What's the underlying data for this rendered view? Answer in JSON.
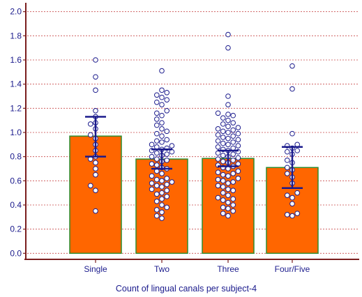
{
  "chart_data": {
    "type": "bar",
    "categories": [
      "Single",
      "Two",
      "Three",
      "Four/Five"
    ],
    "values": [
      0.97,
      0.78,
      0.785,
      0.71
    ],
    "error_bars": [
      {
        "low": 0.8,
        "high": 1.13
      },
      {
        "low": 0.7,
        "high": 0.86
      },
      {
        "low": 0.72,
        "high": 0.85
      },
      {
        "low": 0.54,
        "high": 0.88
      }
    ],
    "points": [
      [
        1.6,
        1.46,
        1.35,
        1.18,
        1.13,
        1.08,
        1.07,
        1.03,
        0.98,
        0.95,
        0.9,
        0.85,
        0.8,
        0.78,
        0.75,
        0.7,
        0.65,
        0.56,
        0.52,
        0.35
      ],
      [
        1.51,
        1.35,
        1.33,
        1.31,
        1.29,
        1.27,
        1.25,
        1.23,
        1.18,
        1.16,
        1.14,
        1.11,
        1.08,
        1.06,
        1.03,
        1.01,
        0.99,
        0.97,
        0.94,
        0.93,
        0.92,
        0.9,
        0.89,
        0.88,
        0.87,
        0.86,
        0.85,
        0.84,
        0.83,
        0.82,
        0.81,
        0.8,
        0.78,
        0.77,
        0.76,
        0.74,
        0.73,
        0.71,
        0.7,
        0.68,
        0.66,
        0.64,
        0.62,
        0.61,
        0.6,
        0.59,
        0.58,
        0.57,
        0.56,
        0.55,
        0.53,
        0.52,
        0.5,
        0.49,
        0.47,
        0.45,
        0.43,
        0.4,
        0.38,
        0.36,
        0.34,
        0.31,
        0.29
      ],
      [
        1.81,
        1.7,
        1.3,
        1.23,
        1.16,
        1.15,
        1.14,
        1.12,
        1.1,
        1.08,
        1.07,
        1.05,
        1.04,
        1.03,
        1.02,
        1.01,
        1.0,
        0.99,
        0.98,
        0.97,
        0.96,
        0.95,
        0.94,
        0.93,
        0.92,
        0.91,
        0.9,
        0.89,
        0.88,
        0.87,
        0.86,
        0.85,
        0.84,
        0.83,
        0.82,
        0.81,
        0.8,
        0.79,
        0.78,
        0.77,
        0.76,
        0.75,
        0.74,
        0.73,
        0.72,
        0.71,
        0.7,
        0.68,
        0.67,
        0.66,
        0.65,
        0.64,
        0.62,
        0.61,
        0.6,
        0.59,
        0.58,
        0.56,
        0.55,
        0.53,
        0.52,
        0.5,
        0.48,
        0.46,
        0.45,
        0.44,
        0.42,
        0.4,
        0.38,
        0.37,
        0.35,
        0.33,
        0.31
      ],
      [
        1.55,
        1.36,
        0.99,
        0.9,
        0.89,
        0.87,
        0.85,
        0.84,
        0.82,
        0.77,
        0.75,
        0.71,
        0.69,
        0.66,
        0.63,
        0.58,
        0.5,
        0.48,
        0.46,
        0.41,
        0.33,
        0.32,
        0.31
      ]
    ],
    "title": "",
    "xlabel": "Count of lingual canals per subject-4",
    "ylabel": "",
    "ylim": [
      -0.05,
      2.05
    ],
    "yticks": [
      0.0,
      0.2,
      0.4,
      0.6,
      0.8,
      1.0,
      1.2,
      1.4,
      1.6,
      1.8,
      2.0
    ],
    "ytick_labels": [
      "0.0",
      "0.2",
      "0.4",
      "0.6",
      "0.8",
      "1.0",
      "1.2",
      "1.4",
      "1.6",
      "1.8",
      "2.0"
    ],
    "grid": true,
    "colors": {
      "bar_fill": "#ff6600",
      "bar_stroke": "#2e8b2e",
      "point_fill": "#ffffff",
      "point_stroke": "#1a1a8c",
      "error_bar": "#1a1a8c",
      "axis": "#7a1e1e",
      "grid": "#c84a4a",
      "text": "#1a1a8c"
    }
  }
}
